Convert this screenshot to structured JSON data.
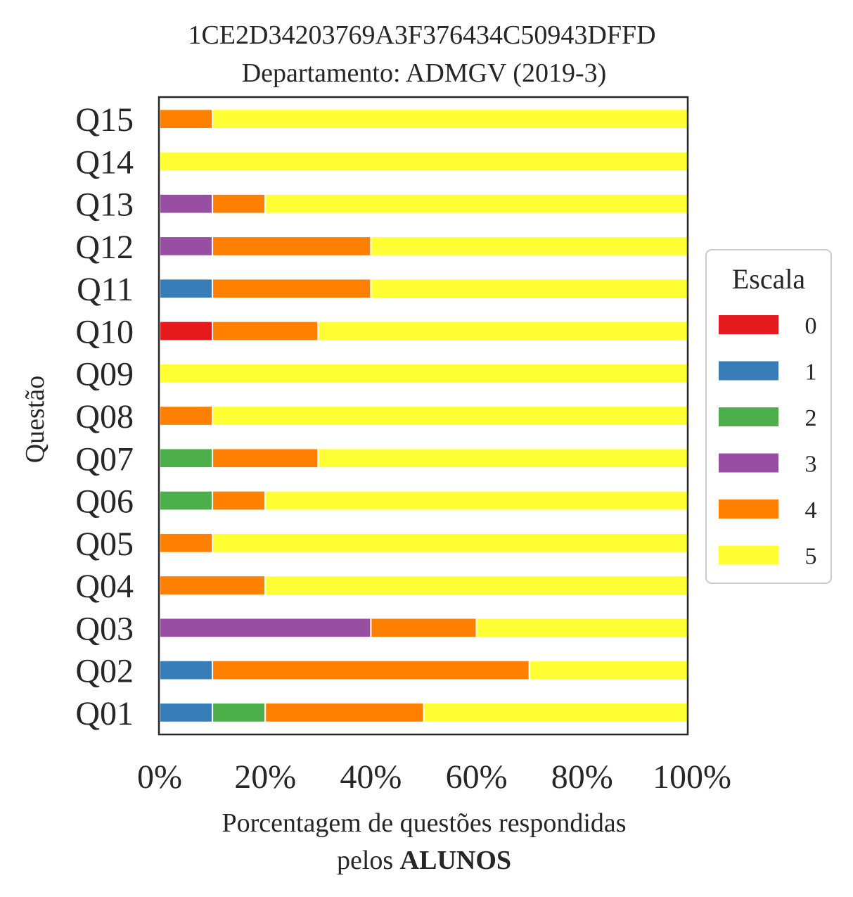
{
  "chart_data": {
    "type": "bar",
    "orientation": "horizontal",
    "stacked": true,
    "title_line1": "1CE2D34203769A3F376434C50943DFFD",
    "title_line2": "Departamento: ADMGV (2019-3)",
    "ylabel": "Questão",
    "xlabel_line1": "Porcentagem de questões respondidas",
    "xlabel_line2_normal": "pelos ",
    "xlabel_line2_bold": "ALUNOS",
    "xlim": [
      0,
      100
    ],
    "xticks": [
      "0%",
      "20%",
      "40%",
      "60%",
      "80%",
      "100%"
    ],
    "xtick_values": [
      0,
      20,
      40,
      60,
      80,
      100
    ],
    "grid": false,
    "legend": {
      "title": "Escala",
      "position": "right"
    },
    "categories": [
      "Q01",
      "Q02",
      "Q03",
      "Q04",
      "Q05",
      "Q06",
      "Q07",
      "Q08",
      "Q09",
      "Q10",
      "Q11",
      "Q12",
      "Q13",
      "Q14",
      "Q15"
    ],
    "series": [
      {
        "name": "0",
        "color": "#e41a1c",
        "values": [
          0,
          0,
          0,
          0,
          0,
          0,
          0,
          0,
          0,
          10,
          0,
          0,
          0,
          0,
          0
        ]
      },
      {
        "name": "1",
        "color": "#377eb8",
        "values": [
          10,
          10,
          0,
          0,
          0,
          0,
          0,
          0,
          0,
          0,
          10,
          0,
          0,
          0,
          0
        ]
      },
      {
        "name": "2",
        "color": "#4daf4a",
        "values": [
          10,
          0,
          0,
          0,
          0,
          10,
          10,
          0,
          0,
          0,
          0,
          0,
          0,
          0,
          0
        ]
      },
      {
        "name": "3",
        "color": "#984ea3",
        "values": [
          0,
          0,
          40,
          0,
          0,
          0,
          0,
          0,
          0,
          0,
          0,
          10,
          10,
          0,
          0
        ]
      },
      {
        "name": "4",
        "color": "#ff7f00",
        "values": [
          30,
          60,
          20,
          20,
          10,
          10,
          20,
          10,
          0,
          20,
          30,
          30,
          10,
          0,
          10
        ]
      },
      {
        "name": "5",
        "color": "#ffff33",
        "values": [
          50,
          30,
          40,
          80,
          90,
          80,
          70,
          90,
          100,
          70,
          60,
          60,
          80,
          100,
          90
        ]
      }
    ]
  }
}
